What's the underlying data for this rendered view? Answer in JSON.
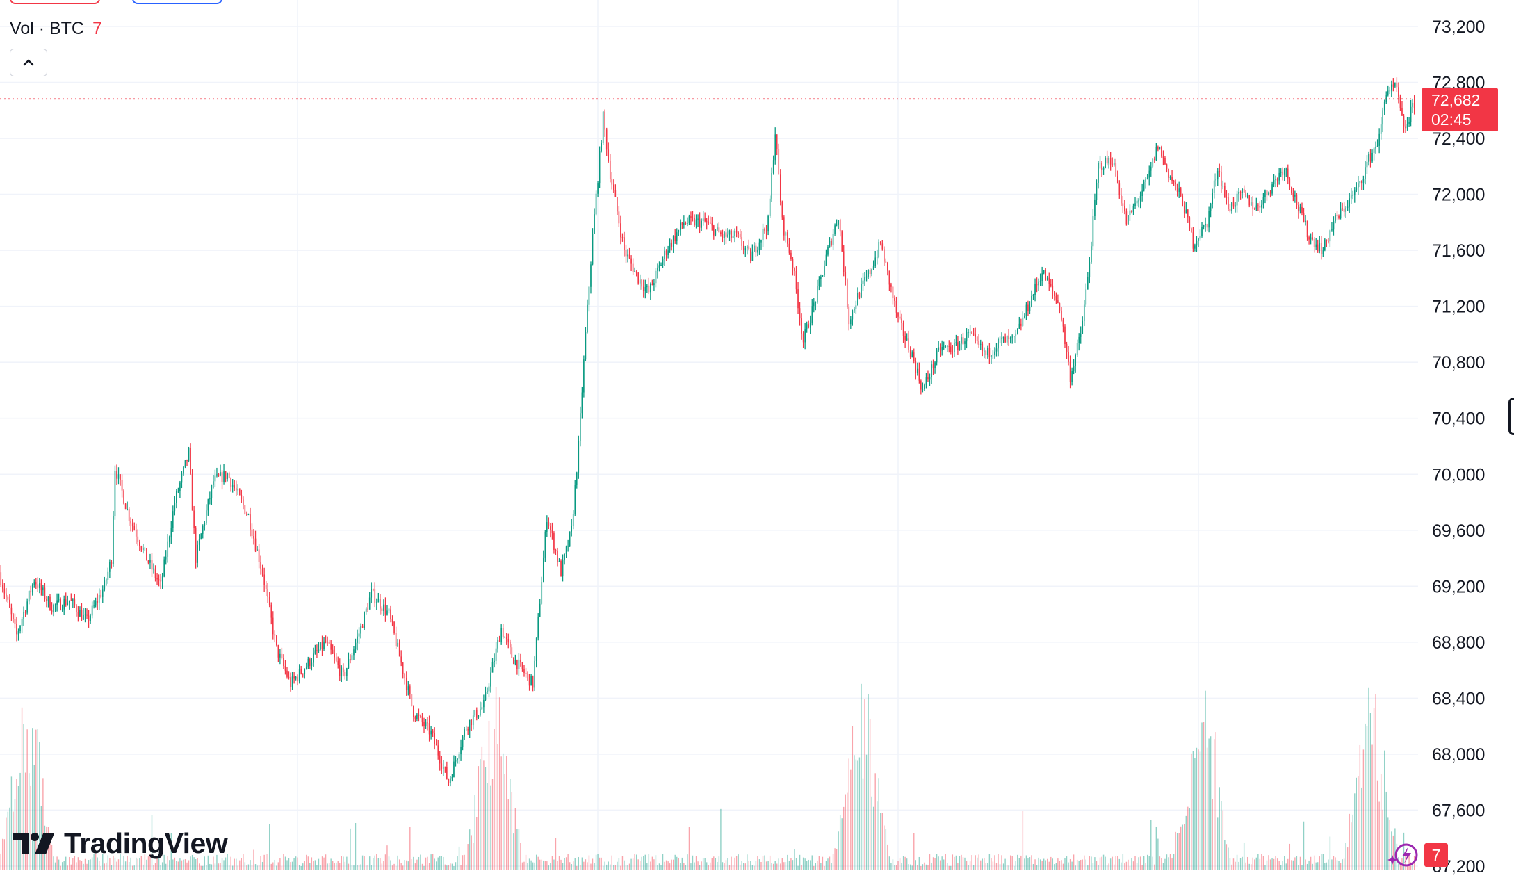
{
  "legend": {
    "vol_label": "Vol · BTC",
    "vol_value": "7"
  },
  "last_price": {
    "price": "72,682",
    "countdown": "02:45"
  },
  "brand": {
    "name": "TradingView"
  },
  "badge": {
    "count": "7"
  },
  "icons": {
    "collapse": "chevron-up-icon",
    "spark": "lightning-spark-icon",
    "logo": "tradingview-logo-icon"
  },
  "colors": {
    "up": "#089981",
    "down": "#f23645",
    "grid": "#f0f3fa",
    "price_line": "#f23645"
  },
  "chart_data": {
    "type": "candlestick",
    "symbol": "BTC",
    "price_axis": {
      "ticks": [
        73200,
        72800,
        72400,
        72000,
        71600,
        71200,
        70800,
        70400,
        70000,
        69600,
        69200,
        68800,
        68400,
        68000,
        67600,
        67200
      ],
      "range": [
        67120,
        73380
      ]
    },
    "last_price": 72682,
    "volume_panel": true,
    "grid": true,
    "close_path": [
      [
        0,
        69300
      ],
      [
        10,
        68850
      ],
      [
        20,
        69250
      ],
      [
        30,
        69050
      ],
      [
        40,
        69100
      ],
      [
        50,
        68950
      ],
      [
        60,
        69200
      ],
      [
        64,
        69400
      ],
      [
        66,
        70050
      ],
      [
        74,
        69700
      ],
      [
        84,
        69400
      ],
      [
        92,
        69200
      ],
      [
        100,
        69800
      ],
      [
        108,
        70150
      ],
      [
        112,
        69400
      ],
      [
        122,
        69950
      ],
      [
        130,
        70000
      ],
      [
        142,
        69700
      ],
      [
        150,
        69300
      ],
      [
        158,
        68750
      ],
      [
        166,
        68500
      ],
      [
        176,
        68650
      ],
      [
        186,
        68800
      ],
      [
        196,
        68550
      ],
      [
        206,
        68900
      ],
      [
        212,
        69150
      ],
      [
        222,
        69000
      ],
      [
        236,
        68300
      ],
      [
        246,
        68150
      ],
      [
        256,
        67800
      ],
      [
        266,
        68200
      ],
      [
        276,
        68350
      ],
      [
        286,
        68900
      ],
      [
        292,
        68700
      ],
      [
        304,
        68500
      ],
      [
        312,
        69700
      ],
      [
        320,
        69300
      ],
      [
        326,
        69600
      ],
      [
        330,
        70200
      ],
      [
        334,
        71000
      ],
      [
        338,
        71700
      ],
      [
        344,
        72550
      ],
      [
        348,
        72150
      ],
      [
        356,
        71600
      ],
      [
        364,
        71400
      ],
      [
        370,
        71300
      ],
      [
        380,
        71600
      ],
      [
        390,
        71800
      ],
      [
        402,
        71800
      ],
      [
        412,
        71700
      ],
      [
        420,
        71700
      ],
      [
        428,
        71550
      ],
      [
        438,
        71800
      ],
      [
        442,
        72450
      ],
      [
        446,
        71800
      ],
      [
        452,
        71500
      ],
      [
        458,
        70950
      ],
      [
        466,
        71300
      ],
      [
        472,
        71600
      ],
      [
        478,
        71850
      ],
      [
        484,
        71100
      ],
      [
        490,
        71300
      ],
      [
        496,
        71450
      ],
      [
        502,
        71650
      ],
      [
        512,
        71100
      ],
      [
        520,
        70850
      ],
      [
        526,
        70600
      ],
      [
        536,
        70900
      ],
      [
        544,
        70900
      ],
      [
        552,
        71000
      ],
      [
        562,
        70850
      ],
      [
        570,
        70950
      ],
      [
        578,
        70950
      ],
      [
        586,
        71200
      ],
      [
        594,
        71450
      ],
      [
        604,
        71200
      ],
      [
        610,
        70700
      ],
      [
        616,
        71000
      ],
      [
        620,
        71400
      ],
      [
        626,
        72200
      ],
      [
        634,
        72250
      ],
      [
        642,
        71800
      ],
      [
        648,
        71950
      ],
      [
        654,
        72100
      ],
      [
        660,
        72350
      ],
      [
        666,
        72150
      ],
      [
        674,
        71950
      ],
      [
        680,
        71650
      ],
      [
        688,
        71800
      ],
      [
        694,
        72200
      ],
      [
        700,
        71900
      ],
      [
        708,
        72000
      ],
      [
        716,
        71900
      ],
      [
        724,
        72050
      ],
      [
        732,
        72200
      ],
      [
        740,
        71900
      ],
      [
        746,
        71700
      ],
      [
        754,
        71600
      ],
      [
        760,
        71800
      ],
      [
        766,
        71900
      ],
      [
        774,
        72050
      ],
      [
        780,
        72250
      ],
      [
        786,
        72400
      ],
      [
        790,
        72750
      ],
      [
        796,
        72750
      ],
      [
        800,
        72450
      ],
      [
        806,
        72650
      ]
    ],
    "volume_note": "histogram of per-bar BTC volume, spikes near 2% / 35% / 61% / 85% / 97% of the timeline"
  }
}
